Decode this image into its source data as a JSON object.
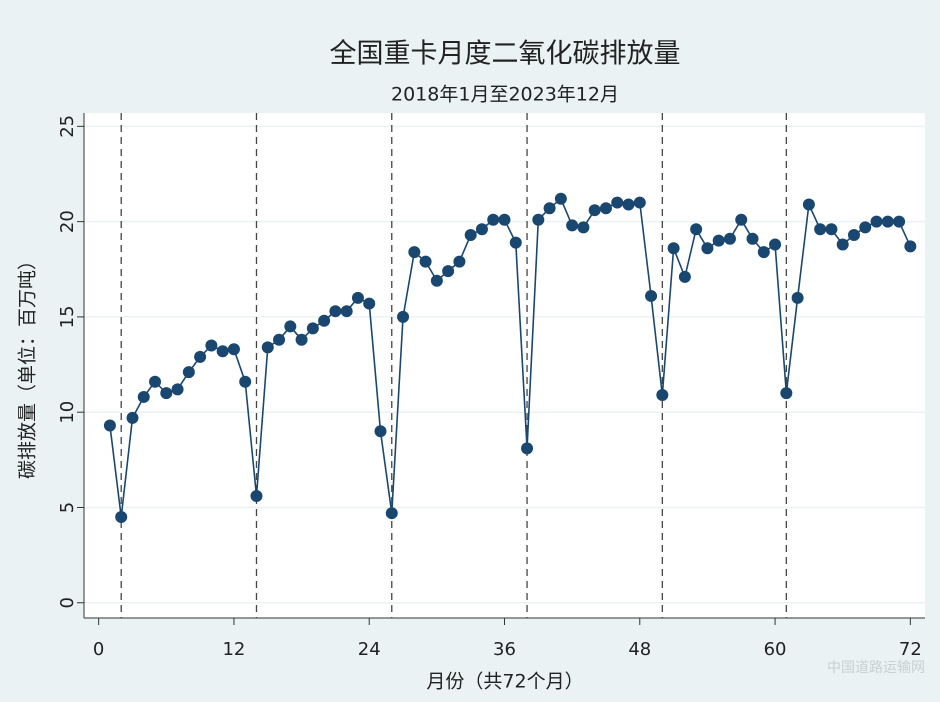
{
  "chart_data": {
    "type": "line",
    "title": "全国重卡月度二氧化碳排放量",
    "subtitle": "2018年1月至2023年12月",
    "x_label": "月份（共72个月）",
    "y_label": "碳排放量（单位：百万吨）",
    "x": [
      1,
      2,
      3,
      4,
      5,
      6,
      7,
      8,
      9,
      10,
      11,
      12,
      13,
      14,
      15,
      16,
      17,
      18,
      19,
      20,
      21,
      22,
      23,
      24,
      25,
      26,
      27,
      28,
      29,
      30,
      31,
      32,
      33,
      34,
      35,
      36,
      37,
      38,
      39,
      40,
      41,
      42,
      43,
      44,
      45,
      46,
      47,
      48,
      49,
      50,
      51,
      52,
      53,
      54,
      55,
      56,
      57,
      58,
      59,
      60,
      61,
      62,
      63,
      64,
      65,
      66,
      67,
      68,
      69,
      70,
      71,
      72
    ],
    "series": [
      {
        "name": "碳排放量",
        "color": "#1a476f",
        "values": [
          9.3,
          4.5,
          9.7,
          10.8,
          11.6,
          11.0,
          11.2,
          12.1,
          12.9,
          13.5,
          13.2,
          13.3,
          11.6,
          5.6,
          13.4,
          13.8,
          14.5,
          13.8,
          14.4,
          14.8,
          15.3,
          15.3,
          16.0,
          15.7,
          9.0,
          4.7,
          15.0,
          18.4,
          17.9,
          16.9,
          17.4,
          17.9,
          19.3,
          19.6,
          20.1,
          20.1,
          18.9,
          8.1,
          20.1,
          20.7,
          21.2,
          19.8,
          19.7,
          20.6,
          20.7,
          21.0,
          20.9,
          21.0,
          16.1,
          10.9,
          18.6,
          17.1,
          19.6,
          18.6,
          19.0,
          19.1,
          20.1,
          19.1,
          18.4,
          18.8,
          11.0,
          16.0,
          20.9,
          19.6,
          19.6,
          18.8,
          19.3,
          19.7,
          20.0,
          20.0,
          20.0,
          18.7
        ]
      }
    ],
    "vlines": [
      2,
      14,
      26,
      38,
      50,
      61
    ],
    "xlim": [
      -1.3,
      73.3
    ],
    "ylim": [
      -0.8,
      25.7
    ],
    "xticks": [
      0,
      12,
      24,
      36,
      48,
      60,
      72
    ],
    "yticks": [
      0,
      5,
      10,
      15,
      20,
      25
    ],
    "grid": true,
    "watermark": "中国道路运输网"
  }
}
